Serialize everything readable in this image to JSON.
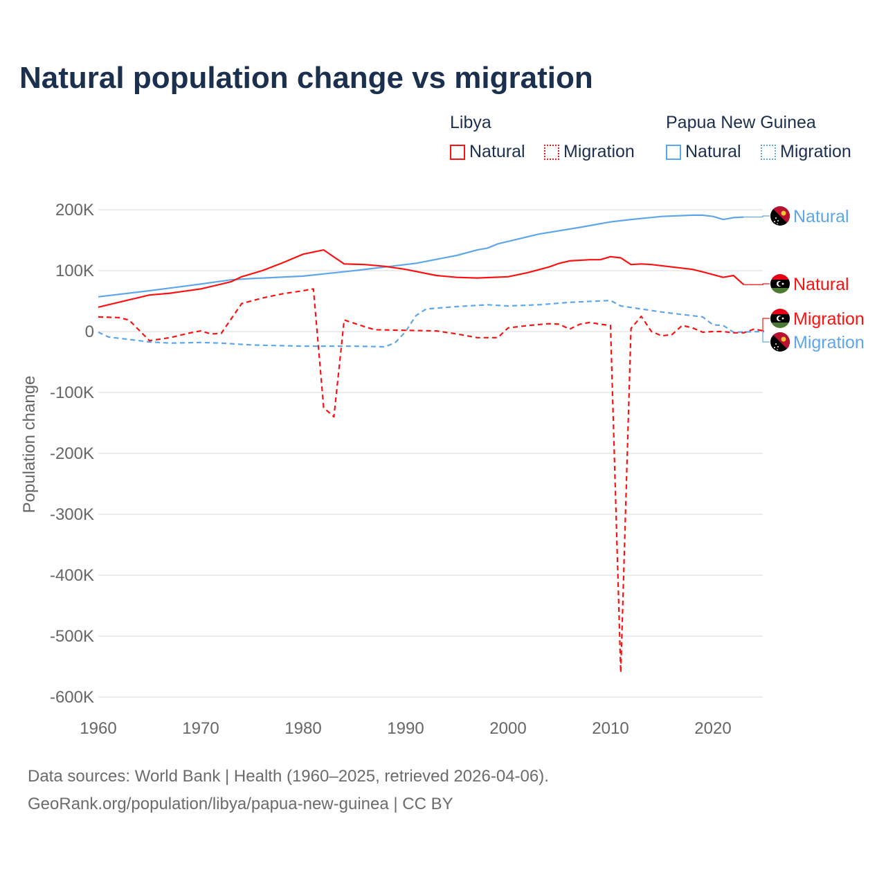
{
  "title": "Natural population change vs migration",
  "legend": {
    "groups": [
      {
        "name": "Libya",
        "items": [
          "Natural",
          "Migration"
        ]
      },
      {
        "name": "Papua New Guinea",
        "items": [
          "Natural",
          "Migration"
        ]
      }
    ]
  },
  "colors": {
    "libya": "#ff1010",
    "png": "#5ea6ea",
    "title": "#1b2f4e",
    "grid": "#e6e6e6",
    "axis_text": "#666666"
  },
  "footer": {
    "line1": "Data sources: World Bank | Health (1960–2025, retrieved 2026-04-06).",
    "line2": "GeoRank.org/population/libya/papua-new-guinea | CC BY"
  },
  "chart_data": {
    "type": "line",
    "title": "Natural population change vs migration",
    "xlabel": "",
    "ylabel": "Population change",
    "xlim": [
      1960,
      2025
    ],
    "ylim": [
      -600000,
      200000
    ],
    "xticks": [
      1960,
      1970,
      1980,
      1990,
      2000,
      2010,
      2020
    ],
    "xtick_labels": [
      "1960",
      "1970",
      "1980",
      "1990",
      "2000",
      "2010",
      "2020"
    ],
    "yticks": [
      200000,
      100000,
      0,
      -100000,
      -200000,
      -300000,
      -400000,
      -500000,
      -600000
    ],
    "ytick_labels": [
      "200K",
      "100K",
      "0",
      "-100K",
      "-200K",
      "-300K",
      "-400K",
      "-500K",
      "-600K"
    ],
    "grid": true,
    "legend_position": "top-right",
    "series": [
      {
        "name": "Libya Natural",
        "country": "Libya",
        "kind": "Natural",
        "end_label": "Natural",
        "color": "#ff1010",
        "dash": "solid",
        "x": [
          1960,
          1963,
          1965,
          1967,
          1970,
          1972,
          1973,
          1974,
          1976,
          1978,
          1980,
          1982,
          1984,
          1986,
          1988,
          1990,
          1993,
          1995,
          1997,
          2000,
          2002,
          2004,
          2005,
          2006,
          2008,
          2009,
          2010,
          2011,
          2012,
          2013,
          2014,
          2016,
          2018,
          2019,
          2021,
          2022,
          2023
        ],
        "y": [
          40000,
          52000,
          60000,
          63000,
          70000,
          78000,
          82000,
          90000,
          100000,
          113000,
          127000,
          134000,
          111000,
          110000,
          107000,
          102000,
          92000,
          89000,
          88000,
          90000,
          97000,
          106000,
          112000,
          116000,
          118000,
          118000,
          123000,
          121000,
          110000,
          111000,
          110000,
          106000,
          102000,
          98000,
          89000,
          92000,
          77000
        ]
      },
      {
        "name": "Libya Migration",
        "country": "Libya",
        "kind": "Migration",
        "end_label": "Migration",
        "color": "#ff1010",
        "dash": "dashed",
        "x": [
          1960,
          1962,
          1963,
          1965,
          1967,
          1969,
          1970,
          1971,
          1972,
          1974,
          1976,
          1978,
          1980,
          1981,
          1982,
          1983,
          1984,
          1986,
          1987,
          1990,
          1993,
          1995,
          1997,
          1999,
          2000,
          2002,
          2004,
          2005,
          2006,
          2007,
          2008,
          2009,
          2010,
          2011,
          2012,
          2013,
          2014,
          2015,
          2016,
          2017,
          2018,
          2019,
          2020,
          2021,
          2022,
          2023,
          2024,
          2025
        ],
        "y": [
          24000,
          23000,
          19000,
          -15000,
          -10000,
          -2000,
          1000,
          -4000,
          -3000,
          46000,
          55000,
          62000,
          67000,
          70000,
          -125000,
          -140000,
          19000,
          8000,
          3000,
          2000,
          1000,
          -4000,
          -10000,
          -10000,
          6000,
          10000,
          13000,
          12000,
          4000,
          12000,
          15000,
          12000,
          10000,
          -560000,
          5000,
          25000,
          0,
          -7000,
          -5000,
          10000,
          6000,
          -1000,
          0,
          0,
          -2000,
          -2000,
          4000,
          1000
        ]
      },
      {
        "name": "Papua New Guinea Natural",
        "country": "Papua New Guinea",
        "kind": "Natural",
        "end_label": "Natural",
        "color": "#5ea6ea",
        "dash": "solid",
        "x": [
          1960,
          1965,
          1970,
          1973,
          1975,
          1980,
          1985,
          1990,
          1991,
          1995,
          1997,
          1998,
          1999,
          2003,
          2007,
          2010,
          2012,
          2015,
          2018,
          2019,
          2020,
          2021,
          2022,
          2023
        ],
        "y": [
          57000,
          67000,
          78000,
          85000,
          87000,
          91000,
          100000,
          110000,
          112000,
          125000,
          134000,
          137000,
          144000,
          160000,
          171000,
          180000,
          184000,
          189000,
          191000,
          191000,
          189000,
          184000,
          187000,
          188000
        ]
      },
      {
        "name": "Papua New Guinea Migration",
        "country": "Papua New Guinea",
        "kind": "Migration",
        "end_label": "Migration",
        "color": "#5ea6ea",
        "dash": "dashed",
        "x": [
          1960,
          1961,
          1963,
          1965,
          1967,
          1970,
          1972,
          1975,
          1980,
          1985,
          1988,
          1989,
          1990,
          1991,
          1992,
          1995,
          1998,
          2000,
          2003,
          2006,
          2010,
          2011,
          2013,
          2015,
          2019,
          2020,
          2021,
          2022,
          2025
        ],
        "y": [
          -1000,
          -9000,
          -13000,
          -17000,
          -19000,
          -18000,
          -19000,
          -22000,
          -24000,
          -24000,
          -25000,
          -18000,
          0,
          26000,
          37000,
          41000,
          44000,
          42000,
          44000,
          48000,
          51000,
          42000,
          37000,
          32000,
          24000,
          11000,
          10000,
          -1000,
          0
        ]
      }
    ]
  }
}
